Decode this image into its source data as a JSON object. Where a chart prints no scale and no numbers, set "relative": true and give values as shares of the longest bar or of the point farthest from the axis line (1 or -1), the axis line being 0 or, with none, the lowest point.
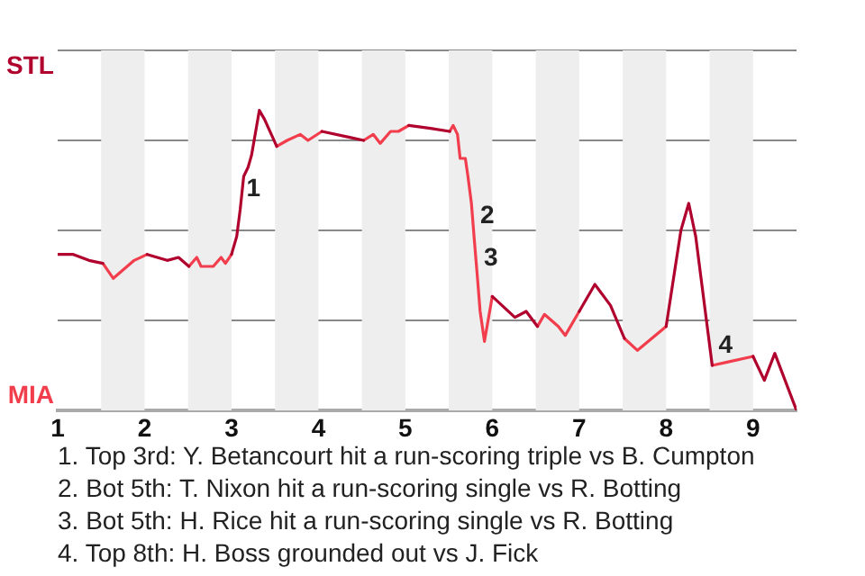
{
  "chart_data": {
    "type": "line",
    "x": [
      1.0,
      1.18,
      1.36,
      1.52,
      1.64,
      1.88,
      2.03,
      2.26,
      2.39,
      2.51,
      2.6,
      2.65,
      2.79,
      2.88,
      2.93,
      3.0,
      3.06,
      3.1,
      3.14,
      3.19,
      3.23,
      3.32,
      3.38,
      3.52,
      3.64,
      3.79,
      3.88,
      4.04,
      4.36,
      4.52,
      4.63,
      4.71,
      4.83,
      4.92,
      5.04,
      5.29,
      5.51,
      5.55,
      5.6,
      5.63,
      5.69,
      5.72,
      5.76,
      5.79,
      5.83,
      5.86,
      5.91,
      6.0,
      6.26,
      6.39,
      6.52,
      6.6,
      6.68,
      6.76,
      6.84,
      7.0,
      7.18,
      7.36,
      7.52,
      7.67,
      8.0,
      8.17,
      8.26,
      8.34,
      8.53,
      8.69,
      9.0,
      9.13,
      9.25,
      9.5
    ],
    "relative": true,
    "series": [
      {
        "color": "#b0002d",
        "values": [
          0.52,
          0.52,
          0.5,
          0.49,
          null,
          null,
          0.52,
          0.5,
          0.51,
          0.48,
          null,
          null,
          null,
          null,
          null,
          0.52,
          0.58,
          0.67,
          0.78,
          0.81,
          0.85,
          1,
          0.97,
          0.88,
          null,
          null,
          null,
          0.93,
          0.91,
          0.9,
          null,
          null,
          null,
          null,
          0.95,
          0.94,
          0.93,
          null,
          null,
          null,
          null,
          null,
          null,
          null,
          null,
          null,
          null,
          0.38,
          0.31,
          0.33,
          0.28,
          null,
          null,
          null,
          null,
          0.33,
          0.42,
          0.35,
          0.24,
          null,
          0.28,
          0.6,
          0.69,
          0.58,
          0.15,
          null,
          0.18,
          0.1,
          0.19,
          0
        ]
      },
      {
        "color": "#f23d4c",
        "values": [
          null,
          null,
          null,
          0.49,
          0.44,
          0.5,
          0.52,
          null,
          null,
          0.48,
          0.51,
          0.48,
          0.48,
          0.51,
          0.49,
          0.52,
          null,
          null,
          null,
          null,
          null,
          null,
          null,
          0.88,
          0.9,
          0.92,
          0.9,
          0.93,
          null,
          0.9,
          0.92,
          0.89,
          0.93,
          0.93,
          0.95,
          null,
          0.93,
          0.95,
          0.92,
          0.84,
          0.84,
          0.78,
          0.69,
          0.58,
          0.44,
          0.33,
          0.23,
          0.38,
          null,
          null,
          0.28,
          0.32,
          0.3,
          0.28,
          0.25,
          0.33,
          null,
          null,
          0.24,
          0.2,
          0.28,
          null,
          null,
          null,
          0.15,
          0.16,
          0.18,
          null,
          null,
          null
        ]
      }
    ],
    "xlim": [
      1,
      9.5
    ],
    "xticks": [
      1,
      2,
      3,
      4,
      5,
      6,
      7,
      8,
      9
    ],
    "grid": "y",
    "bands": [
      {
        "axis": "x",
        "from": 1.5,
        "to": 2,
        "color": "#eeeeee"
      },
      {
        "axis": "x",
        "from": 2.5,
        "to": 3,
        "color": "#eeeeee"
      },
      {
        "axis": "x",
        "from": 3.5,
        "to": 4,
        "color": "#eeeeee"
      },
      {
        "axis": "x",
        "from": 4.5,
        "to": 5,
        "color": "#eeeeee"
      },
      {
        "axis": "x",
        "from": 5.5,
        "to": 6,
        "color": "#eeeeee"
      },
      {
        "axis": "x",
        "from": 6.5,
        "to": 7,
        "color": "#eeeeee"
      },
      {
        "axis": "x",
        "from": 7.5,
        "to": 8,
        "color": "#eeeeee"
      },
      {
        "axis": "x",
        "from": 8.5,
        "to": 9,
        "color": "#eeeeee"
      }
    ],
    "annotations": [
      {
        "text": "1",
        "x": 3.1,
        "y": 0.67
      },
      {
        "text": "2",
        "x": 5.79,
        "y": 0.58
      },
      {
        "text": "3",
        "x": 5.83,
        "y": 0.44
      },
      {
        "text": "4",
        "x": 8.53,
        "y": 0.15
      },
      "STL",
      "MIA",
      "1. Top 3rd: Y. Betancourt hit a run-scoring triple vs B. Cumpton",
      "2. Bot 5th: T. Nixon hit a run-scoring single vs R. Botting",
      "3. Bot 5th: H. Rice hit a run-scoring single vs R. Botting",
      "4. Top 8th: H. Boss grounded out vs J. Fick"
    ],
    "legend": false,
    "marker": "none"
  }
}
